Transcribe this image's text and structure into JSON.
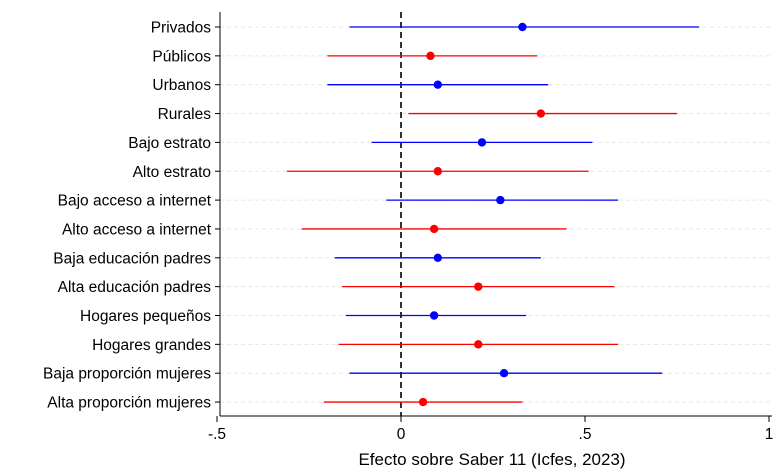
{
  "chart_data": {
    "type": "scatter",
    "subtype": "coefficient-plot",
    "title": "",
    "xlabel": "Efecto sobre Saber 11 (Icfes, 2023)",
    "ylabel": "",
    "xlim": [
      -0.5,
      1.0
    ],
    "x_ticks": [
      -0.5,
      0,
      0.5,
      1
    ],
    "x_tick_labels": [
      "-.5",
      "0",
      ".5",
      "1"
    ],
    "reference_line": {
      "x": 0,
      "style": "dashed",
      "color": "#000000"
    },
    "grid": "horizontal-dashed",
    "legend": "none",
    "colors": {
      "blue": "#0000ff",
      "red": "#ff0000",
      "grid": "#e6e6e6"
    },
    "categories": [
      "Privados",
      "Públicos",
      "Urbanos",
      "Rurales",
      "Bajo estrato",
      "Alto estrato",
      "Bajo acceso a internet",
      "Alto acceso a internet",
      "Baja educación padres",
      "Alta educación padres",
      "Hogares pequeños",
      "Hogares grandes",
      "Baja proporción mujeres",
      "Alta proporción mujeres"
    ],
    "points": [
      {
        "label": "Privados",
        "estimate": 0.33,
        "lower": -0.14,
        "upper": 0.81,
        "color": "blue"
      },
      {
        "label": "Públicos",
        "estimate": 0.08,
        "lower": -0.2,
        "upper": 0.37,
        "color": "red"
      },
      {
        "label": "Urbanos",
        "estimate": 0.1,
        "lower": -0.2,
        "upper": 0.4,
        "color": "blue"
      },
      {
        "label": "Rurales",
        "estimate": 0.38,
        "lower": 0.02,
        "upper": 0.75,
        "color": "red"
      },
      {
        "label": "Bajo estrato",
        "estimate": 0.22,
        "lower": -0.08,
        "upper": 0.52,
        "color": "blue"
      },
      {
        "label": "Alto estrato",
        "estimate": 0.1,
        "lower": -0.31,
        "upper": 0.51,
        "color": "red"
      },
      {
        "label": "Bajo acceso a internet",
        "estimate": 0.27,
        "lower": -0.04,
        "upper": 0.59,
        "color": "blue"
      },
      {
        "label": "Alto acceso a internet",
        "estimate": 0.09,
        "lower": -0.27,
        "upper": 0.45,
        "color": "red"
      },
      {
        "label": "Baja educación padres",
        "estimate": 0.1,
        "lower": -0.18,
        "upper": 0.38,
        "color": "blue"
      },
      {
        "label": "Alta educación padres",
        "estimate": 0.21,
        "lower": -0.16,
        "upper": 0.58,
        "color": "red"
      },
      {
        "label": "Hogares pequeños",
        "estimate": 0.09,
        "lower": -0.15,
        "upper": 0.34,
        "color": "blue"
      },
      {
        "label": "Hogares grandes",
        "estimate": 0.21,
        "lower": -0.17,
        "upper": 0.59,
        "color": "red"
      },
      {
        "label": "Baja proporción mujeres",
        "estimate": 0.28,
        "lower": -0.14,
        "upper": 0.71,
        "color": "blue"
      },
      {
        "label": "Alta proporción mujeres",
        "estimate": 0.06,
        "lower": -0.21,
        "upper": 0.33,
        "color": "red"
      }
    ]
  }
}
